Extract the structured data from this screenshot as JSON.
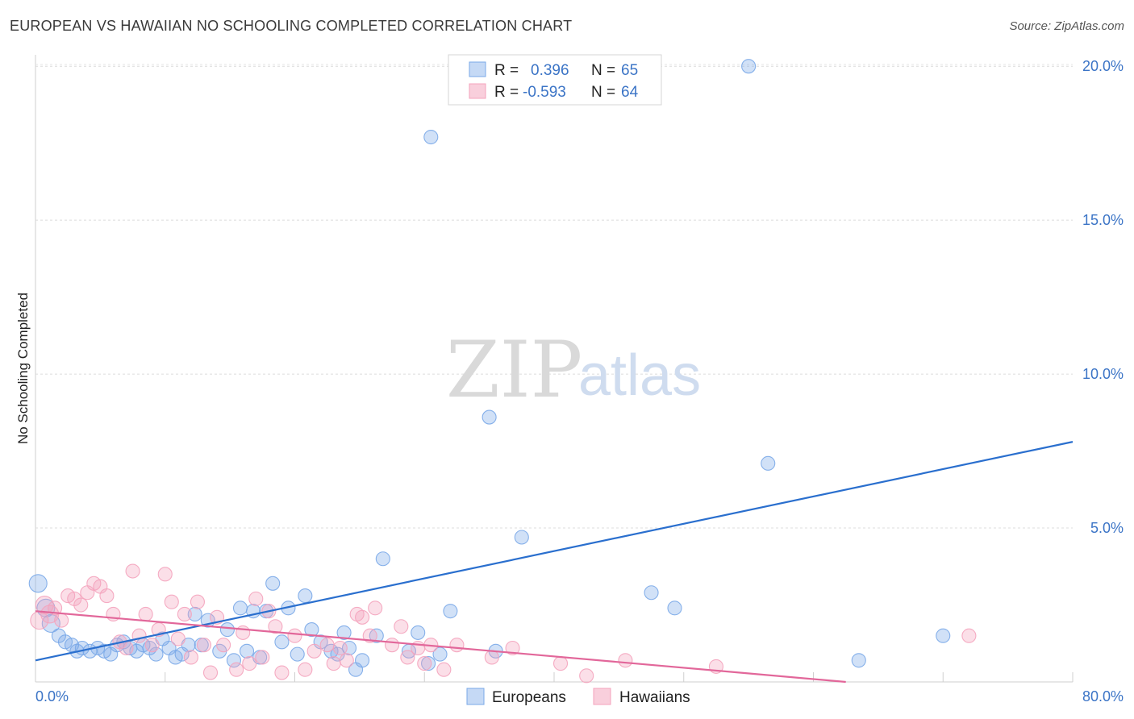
{
  "header": {
    "title": "EUROPEAN VS HAWAIIAN NO SCHOOLING COMPLETED CORRELATION CHART",
    "source": "Source: ZipAtlas.com"
  },
  "watermark": {
    "zip": "ZIP",
    "atlas": "atlas"
  },
  "legend": {
    "rows": [
      {
        "r_label": "R =",
        "r_value": "0.396",
        "n_label": "N =",
        "n_value": "65",
        "color": "#7aa9e8"
      },
      {
        "r_label": "R =",
        "r_value": "-0.593",
        "n_label": "N =",
        "n_value": "64",
        "color": "#f4a3bd"
      }
    ]
  },
  "bottom_legend": {
    "europeans": "Europeans",
    "hawaiians": "Hawaiians"
  },
  "chart_data": {
    "type": "scatter",
    "title": "EUROPEAN VS HAWAIIAN NO SCHOOLING COMPLETED CORRELATION CHART",
    "xlabel": "",
    "ylabel": "No Schooling Completed",
    "xlim": [
      0,
      80
    ],
    "ylim": [
      0,
      21
    ],
    "x_tick_labels": {
      "min": "0.0%",
      "max": "80.0%"
    },
    "y_ticks": [
      {
        "value": 5,
        "label": "5.0%"
      },
      {
        "value": 10,
        "label": "10.0%"
      },
      {
        "value": 15,
        "label": "15.0%"
      },
      {
        "value": 20,
        "label": "20.0%"
      }
    ],
    "colors": {
      "europeans": "#7aa9e8",
      "hawaiians": "#f4a3bd",
      "europeans_line": "#2a6fce",
      "hawaiians_line": "#e2679a"
    },
    "series": [
      {
        "name": "Europeans",
        "trend": {
          "x0": 0,
          "y0": 0.7,
          "x1": 80,
          "y1": 7.8
        },
        "points": [
          [
            0.2,
            3.2
          ],
          [
            0.8,
            2.4
          ],
          [
            1.2,
            1.9
          ],
          [
            1.8,
            1.5
          ],
          [
            2.3,
            1.3
          ],
          [
            2.8,
            1.2
          ],
          [
            3.2,
            1.0
          ],
          [
            3.6,
            1.1
          ],
          [
            4.2,
            1.0
          ],
          [
            4.8,
            1.1
          ],
          [
            5.3,
            1.0
          ],
          [
            5.8,
            0.9
          ],
          [
            6.3,
            1.2
          ],
          [
            6.8,
            1.3
          ],
          [
            7.3,
            1.1
          ],
          [
            7.8,
            1.0
          ],
          [
            8.3,
            1.2
          ],
          [
            8.8,
            1.1
          ],
          [
            9.3,
            0.9
          ],
          [
            9.8,
            1.4
          ],
          [
            10.3,
            1.1
          ],
          [
            10.8,
            0.8
          ],
          [
            11.3,
            0.9
          ],
          [
            11.8,
            1.2
          ],
          [
            12.3,
            2.2
          ],
          [
            12.8,
            1.2
          ],
          [
            13.3,
            2.0
          ],
          [
            14.2,
            1.0
          ],
          [
            14.8,
            1.7
          ],
          [
            15.3,
            0.7
          ],
          [
            15.8,
            2.4
          ],
          [
            16.3,
            1.0
          ],
          [
            16.8,
            2.3
          ],
          [
            17.3,
            0.8
          ],
          [
            17.8,
            2.3
          ],
          [
            18.3,
            3.2
          ],
          [
            19.0,
            1.3
          ],
          [
            19.5,
            2.4
          ],
          [
            20.2,
            0.9
          ],
          [
            20.8,
            2.8
          ],
          [
            21.3,
            1.7
          ],
          [
            22.0,
            1.3
          ],
          [
            22.8,
            1.0
          ],
          [
            23.3,
            0.9
          ],
          [
            23.8,
            1.6
          ],
          [
            24.2,
            1.1
          ],
          [
            24.7,
            0.4
          ],
          [
            25.2,
            0.7
          ],
          [
            26.3,
            1.5
          ],
          [
            26.8,
            4.0
          ],
          [
            28.8,
            1.0
          ],
          [
            29.5,
            1.6
          ],
          [
            30.3,
            0.6
          ],
          [
            31.2,
            0.9
          ],
          [
            32.0,
            2.3
          ],
          [
            35.0,
            8.6
          ],
          [
            35.5,
            1.0
          ],
          [
            37.5,
            4.7
          ],
          [
            47.5,
            2.9
          ],
          [
            49.3,
            2.4
          ],
          [
            56.5,
            7.1
          ],
          [
            63.5,
            0.7
          ],
          [
            70.0,
            1.5
          ],
          [
            30.5,
            17.7
          ],
          [
            55.0,
            20.0
          ]
        ]
      },
      {
        "name": "Hawaiians",
        "trend": {
          "x0": 0,
          "y0": 2.3,
          "x1": 62.5,
          "y1": 0.0
        },
        "points": [
          [
            0.3,
            2.0
          ],
          [
            0.7,
            2.5
          ],
          [
            1.1,
            2.2
          ],
          [
            1.5,
            2.4
          ],
          [
            2.0,
            2.0
          ],
          [
            2.5,
            2.8
          ],
          [
            3.0,
            2.7
          ],
          [
            3.5,
            2.5
          ],
          [
            4.0,
            2.9
          ],
          [
            4.5,
            3.2
          ],
          [
            5.0,
            3.1
          ],
          [
            5.5,
            2.8
          ],
          [
            6.0,
            2.2
          ],
          [
            6.5,
            1.3
          ],
          [
            7.0,
            1.1
          ],
          [
            7.5,
            3.6
          ],
          [
            8.0,
            1.5
          ],
          [
            8.5,
            2.2
          ],
          [
            9.0,
            1.2
          ],
          [
            9.5,
            1.7
          ],
          [
            10.0,
            3.5
          ],
          [
            10.5,
            2.6
          ],
          [
            11.0,
            1.4
          ],
          [
            11.5,
            2.2
          ],
          [
            12.0,
            0.8
          ],
          [
            12.5,
            2.6
          ],
          [
            13.0,
            1.2
          ],
          [
            13.5,
            0.3
          ],
          [
            14.0,
            2.1
          ],
          [
            14.5,
            1.2
          ],
          [
            15.5,
            0.4
          ],
          [
            16.0,
            1.6
          ],
          [
            16.5,
            0.6
          ],
          [
            17.0,
            2.7
          ],
          [
            17.5,
            0.8
          ],
          [
            18.0,
            2.3
          ],
          [
            18.5,
            1.8
          ],
          [
            19.0,
            0.3
          ],
          [
            20.0,
            1.5
          ],
          [
            20.8,
            0.4
          ],
          [
            21.5,
            1.0
          ],
          [
            22.5,
            1.2
          ],
          [
            23.0,
            0.6
          ],
          [
            23.5,
            1.1
          ],
          [
            24.0,
            0.7
          ],
          [
            24.8,
            2.2
          ],
          [
            25.2,
            2.1
          ],
          [
            25.8,
            1.5
          ],
          [
            26.2,
            2.4
          ],
          [
            27.5,
            1.2
          ],
          [
            28.2,
            1.8
          ],
          [
            28.7,
            0.8
          ],
          [
            29.5,
            1.1
          ],
          [
            30.0,
            0.6
          ],
          [
            30.5,
            1.2
          ],
          [
            31.5,
            0.4
          ],
          [
            32.5,
            1.2
          ],
          [
            35.2,
            0.8
          ],
          [
            36.8,
            1.1
          ],
          [
            40.5,
            0.6
          ],
          [
            42.5,
            0.2
          ],
          [
            45.5,
            0.7
          ],
          [
            52.5,
            0.5
          ],
          [
            72.0,
            1.5
          ]
        ]
      }
    ]
  }
}
